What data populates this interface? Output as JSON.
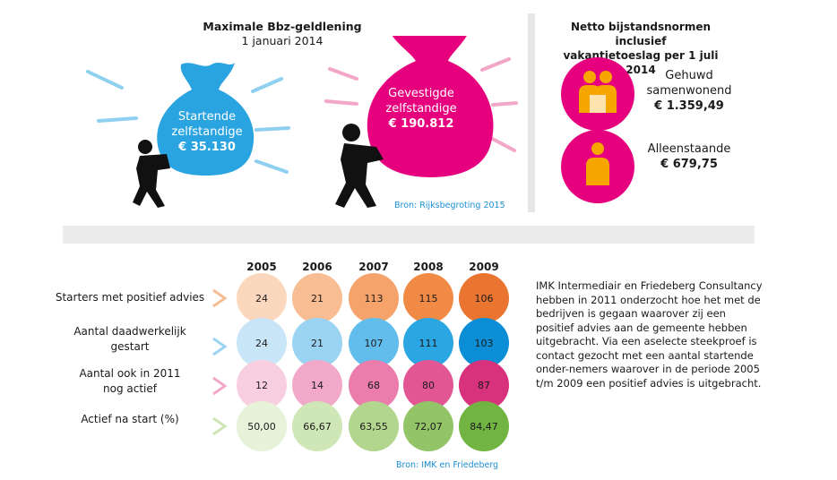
{
  "loan": {
    "title": "Maximale Bbz-geldlening",
    "date": "1 januari 2014",
    "starters": {
      "line1": "Startende",
      "line2": "zelfstandige",
      "amount": "€ 35.130"
    },
    "established": {
      "line1": "Gevestigde",
      "line2": "zelfstandige",
      "amount": "€ 190.812"
    },
    "source": "Bron: Rijksbegroting 2015"
  },
  "norms": {
    "title_line1": "Netto bijstandsnormen inclusief",
    "title_line2": "vakantietoeslag per 1 juli 2014",
    "married": {
      "line1": "Gehuwd",
      "line2": "samenwonend",
      "amount": "€ 1.359,49"
    },
    "single": {
      "line1": "Alleenstaande",
      "amount": "€ 679,75"
    }
  },
  "table": {
    "years": [
      "2005",
      "2006",
      "2007",
      "2008",
      "2009"
    ],
    "rows": [
      {
        "label_lines": [
          "Starters met positief advies"
        ],
        "values": [
          "24",
          "21",
          "113",
          "115",
          "106"
        ]
      },
      {
        "label_lines": [
          "Aantal daadwerkelijk",
          "gestart"
        ],
        "values": [
          "24",
          "21",
          "107",
          "111",
          "103"
        ]
      },
      {
        "label_lines": [
          "Aantal ook in 2011",
          "nog actief"
        ],
        "values": [
          "12",
          "14",
          "68",
          "80",
          "87"
        ]
      },
      {
        "label_lines": [
          "Actief na start (%)"
        ],
        "values": [
          "50,00",
          "66,67",
          "63,55",
          "72,07",
          "84,47"
        ]
      }
    ],
    "source": "Bron: IMK en Friedeberg"
  },
  "description": "IMK Intermediair en Friedeberg Consultancy hebben in 2011 onderzocht hoe het met de bedrijven is gegaan waarover zij een positief advies aan de gemeente hebben uitgebracht. Via een aselecte steekproef is contact gezocht met een aantal startende onder-nemers waarover in de periode 2005 t/m 2009 een positief advies is uitgebracht.",
  "colors": {
    "blue": "#2aa4e0",
    "magenta": "#e6007e",
    "light_blue_ray": "#8fd0f0",
    "pink_ray": "#f3a7c8",
    "icon_orange": "#f7a600",
    "row_orange": [
      "#fbd7bd",
      "#f8bd92",
      "#f6a36b",
      "#f08a44",
      "#ea7530"
    ],
    "row_blue": [
      "#c8e6f7",
      "#9ad4f2",
      "#62bdec",
      "#2aa6e3",
      "#0b8ed6"
    ],
    "row_pink": [
      "#f8cfe0",
      "#f2a8c8",
      "#eb7dad",
      "#e25694",
      "#d9327d"
    ],
    "row_green": [
      "#e7f2da",
      "#cfe6b6",
      "#b2d68e",
      "#93c568",
      "#72b441"
    ]
  }
}
